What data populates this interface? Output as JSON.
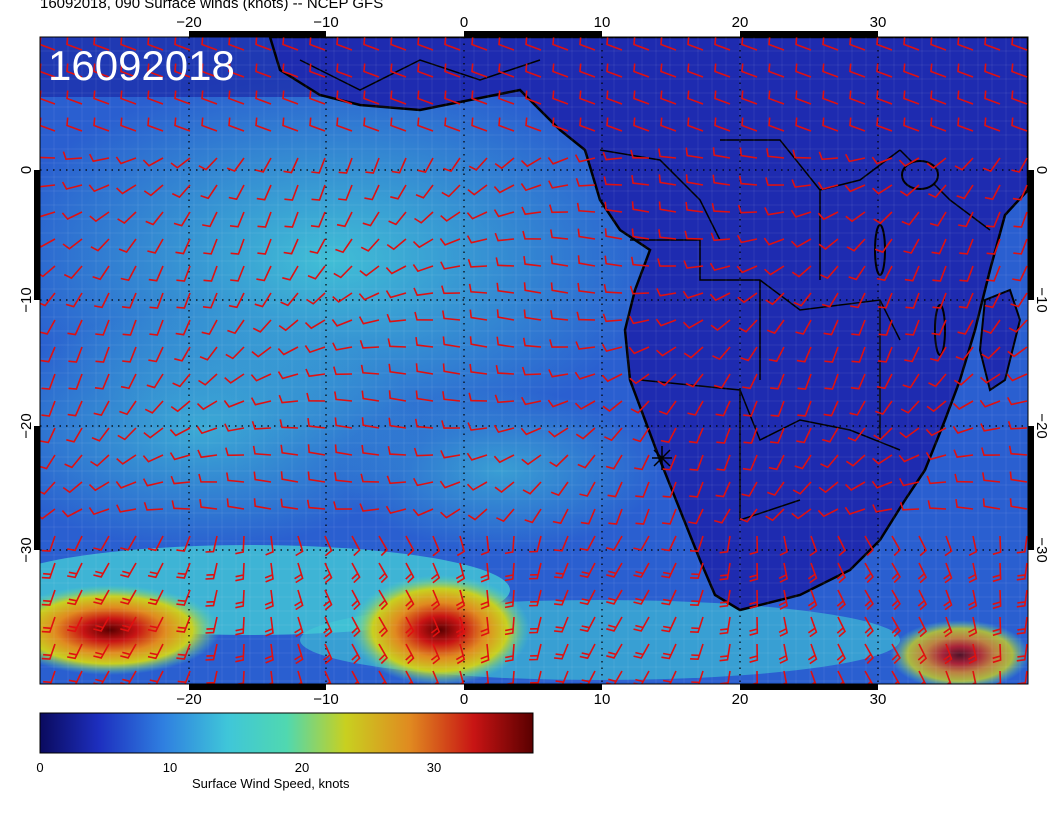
{
  "title": "16092018, 090 Surface winds (knots) -- NCEP GFS",
  "stamp": "16092018",
  "axes": {
    "lon_ticks_top": [
      "−20",
      "−10",
      "0",
      "10",
      "20",
      "30"
    ],
    "lon_ticks_bottom": [
      "−20",
      "−10",
      "0",
      "10",
      "20",
      "30"
    ],
    "lat_ticks_left": [
      "0",
      "−10",
      "−20",
      "−30"
    ],
    "lat_ticks_right": [
      "0",
      "−10",
      "−20",
      "−30"
    ]
  },
  "colorbar": {
    "label": "Surface Wind Speed, knots",
    "ticks": [
      "0",
      "10",
      "20",
      "30"
    ],
    "stops": [
      "#0a0a5e",
      "#1d2fbf",
      "#2f7fe0",
      "#3fc6d9",
      "#50d8b0",
      "#c8d020",
      "#e08a20",
      "#c81414",
      "#5a0000"
    ]
  },
  "colors": {
    "barb": "#e01010",
    "coast": "#000000",
    "ocean_base": "#2a5fd0",
    "land_base": "#1e2bb0"
  }
}
